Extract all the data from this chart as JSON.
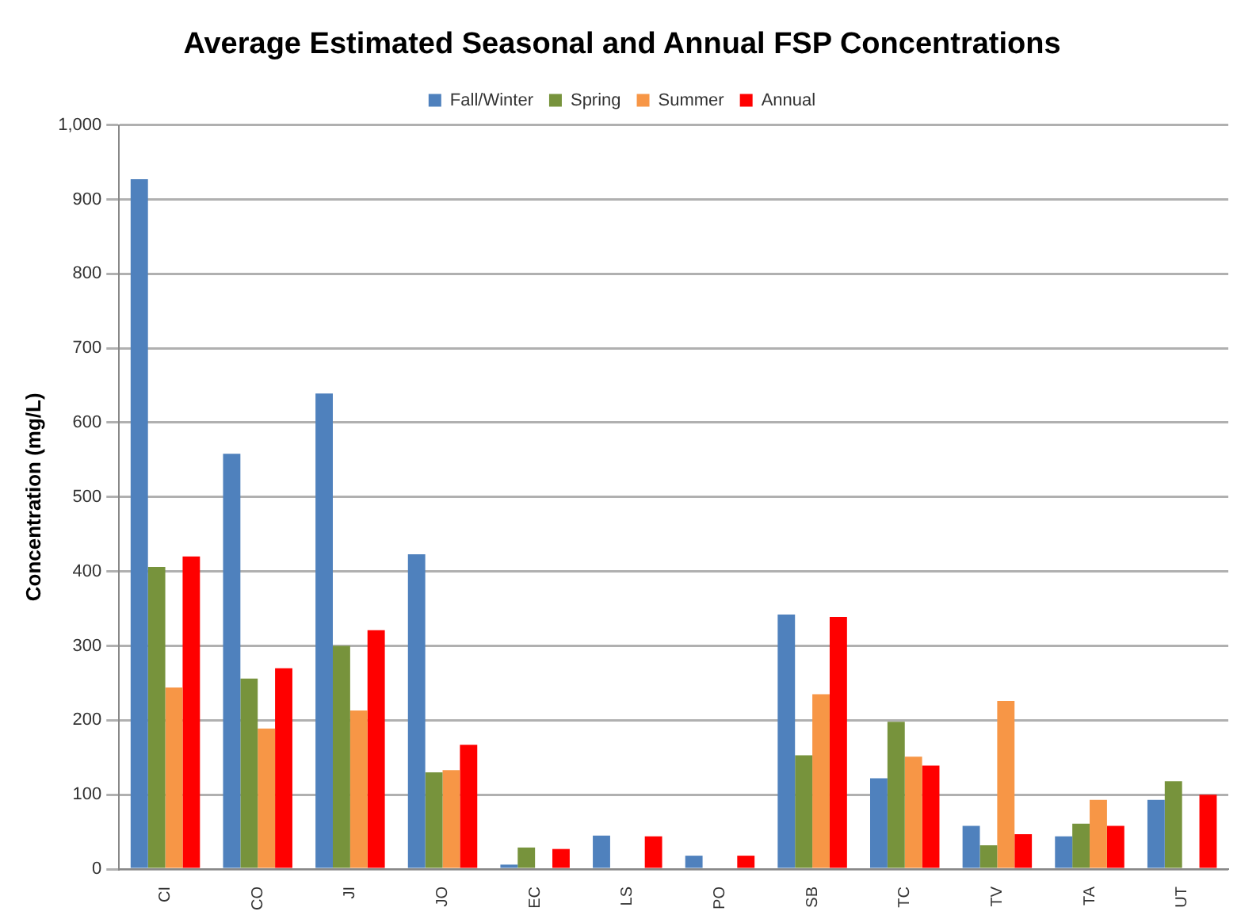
{
  "chart_data": {
    "type": "bar",
    "title": "Average Estimated Seasonal and Annual FSP Concentrations",
    "ylabel": "Concentration (mg/L)",
    "categories": [
      "CI",
      "CO",
      "JI",
      "JO",
      "EC",
      "LS",
      "PO",
      "SB",
      "TC",
      "TV",
      "TA",
      "UT"
    ],
    "series": [
      {
        "name": "Fall/Winter",
        "color": "#4f81bd",
        "values": [
          927,
          558,
          639,
          423,
          6,
          45,
          18,
          342,
          122,
          58,
          44,
          93
        ]
      },
      {
        "name": "Spring",
        "color": "#77933c",
        "values": [
          406,
          256,
          300,
          130,
          29,
          null,
          null,
          153,
          198,
          32,
          61,
          118
        ]
      },
      {
        "name": "Summer",
        "color": "#f79646",
        "values": [
          244,
          189,
          213,
          133,
          null,
          null,
          null,
          235,
          151,
          226,
          93,
          null
        ]
      },
      {
        "name": "Annual",
        "color": "#ff0000",
        "values": [
          420,
          270,
          321,
          167,
          27,
          44,
          18,
          339,
          139,
          47,
          58,
          100
        ]
      }
    ],
    "ylim": [
      0,
      1000
    ],
    "yticks": [
      0,
      100,
      200,
      300,
      400,
      500,
      600,
      700,
      800,
      900,
      {
        "value": 1000,
        "label": "1,000"
      }
    ],
    "grid": "y",
    "legend": "top"
  }
}
